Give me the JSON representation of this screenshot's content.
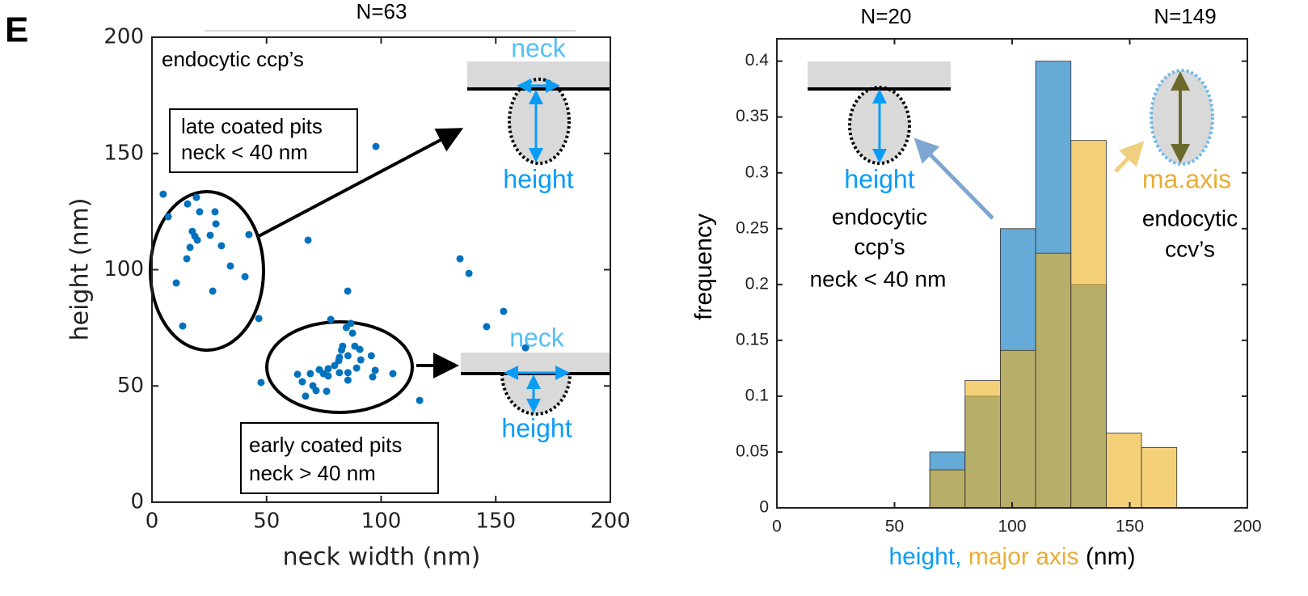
{
  "panel_label": "E",
  "chart_data": [
    {
      "type": "scatter",
      "title": "N=63",
      "xlabel": "neck width (nm)",
      "ylabel": "height (nm)",
      "color": "#0072bd",
      "xlim": [
        0,
        200
      ],
      "ylim": [
        0,
        200
      ],
      "xticks": [
        0,
        50,
        100,
        150,
        200
      ],
      "yticks": [
        0,
        50,
        100,
        150,
        200
      ],
      "x": [
        4.9,
        7.1,
        15.5,
        19.4,
        20.8,
        17.6,
        18.7,
        19.8,
        16.6,
        15.2,
        25.4,
        27.5,
        27.9,
        30.3,
        34.2,
        26.5,
        10.6,
        13.4,
        40.6,
        42.3,
        46.6,
        47.6,
        68.1,
        97.7,
        78.0,
        86.8,
        87.5,
        84.8,
        83.2,
        88.5,
        82.7,
        85.5,
        95.7,
        91.1,
        81.5,
        79.7,
        76.9,
        73.0,
        74.8,
        81.8,
        85.5,
        85.5,
        89.3,
        97.4,
        96.3,
        105.1,
        63.5,
        65.6,
        69.1,
        70.2,
        67.0,
        71.6,
        76.2,
        76.9,
        81.8,
        90.7,
        85.4,
        116.8,
        134.4,
        138.3,
        153.4,
        146.0,
        163.0
      ],
      "y": [
        132.5,
        122.8,
        128.3,
        131.1,
        124.9,
        116.5,
        114.4,
        112.7,
        109.6,
        104.7,
        114.8,
        124.9,
        119.7,
        110.3,
        101.6,
        90.8,
        94.3,
        75.8,
        97.0,
        115.1,
        79.0,
        51.5,
        112.7,
        153.0,
        78.6,
        76.9,
        72.7,
        75.1,
        67.1,
        67.1,
        65.4,
        63.0,
        63.0,
        61.2,
        60.9,
        58.8,
        57.4,
        57.0,
        55.3,
        55.7,
        55.7,
        52.5,
        57.7,
        56.7,
        53.9,
        55.3,
        55.0,
        51.8,
        55.3,
        50.1,
        45.6,
        48.0,
        47.7,
        54.3,
        62.3,
        65.7,
        90.8,
        43.8,
        104.7,
        98.4,
        82.1,
        75.5,
        66.4
      ],
      "annotations": [
        "endocytic ccp’s",
        "late coated pits",
        "neck < 40 nm",
        "early coated pits",
        "neck > 40 nm",
        "neck",
        "height",
        "neck",
        "height"
      ]
    },
    {
      "type": "histogram",
      "ylabel": "frequency",
      "xlabel": [
        "height,",
        "major axis",
        "(nm)"
      ],
      "xlim": [
        0,
        200
      ],
      "ylim": [
        0,
        0.42
      ],
      "xticks": [
        0,
        50,
        100,
        150,
        200
      ],
      "yticks": [
        0,
        0.05,
        0.1,
        0.15,
        0.2,
        0.25,
        0.3,
        0.35,
        0.4
      ],
      "bins": [
        65,
        80,
        95,
        110,
        125,
        140,
        155,
        170
      ],
      "series": [
        {
          "color": "#0072bd",
          "values": [
            0.05,
            0.1,
            0.25,
            0.4,
            0.2,
            0,
            0
          ]
        },
        {
          "color": "#edb120",
          "values": [
            0.034,
            0.114,
            0.141,
            0.228,
            0.329,
            0.067,
            0.054
          ]
        }
      ],
      "annotations": [
        "N=20",
        "N=149",
        "height",
        "endocytic",
        "ccp’s",
        "neck < 40 nm",
        "ma.axis",
        "endocytic",
        "ccv’s"
      ]
    }
  ]
}
